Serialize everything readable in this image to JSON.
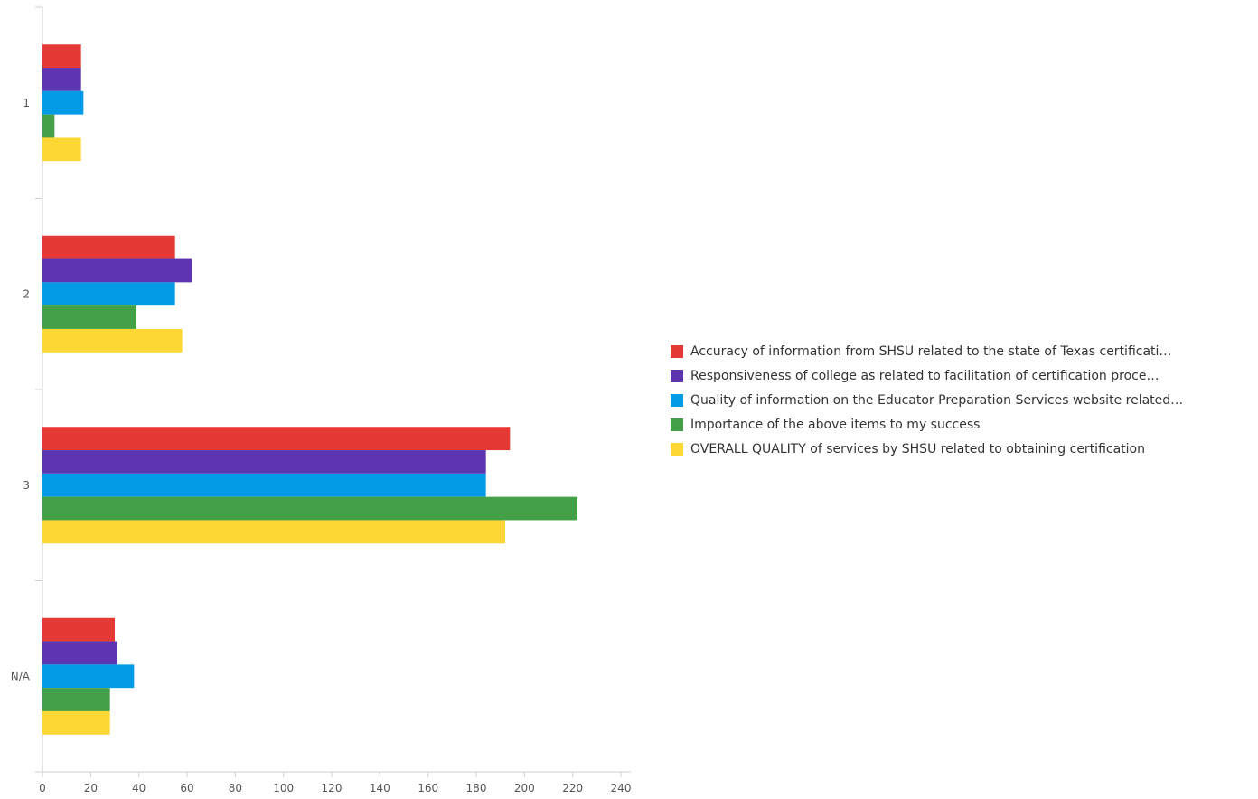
{
  "chart_data": {
    "type": "bar",
    "orientation": "horizontal",
    "categories": [
      "1",
      "2",
      "3",
      "N/A"
    ],
    "series": [
      {
        "name": "Accuracy of information from SHSU related to the state of Texas certificati…",
        "color": "#e53935",
        "values": [
          16,
          55,
          194,
          30
        ]
      },
      {
        "name": "Responsiveness of college as related to facilitation of certification proce…",
        "color": "#5e35b1",
        "values": [
          16,
          62,
          184,
          31
        ]
      },
      {
        "name": "Quality of information on the Educator Preparation Services website related…",
        "color": "#039be5",
        "values": [
          17,
          55,
          184,
          38
        ]
      },
      {
        "name": "Importance of the above items to my success",
        "color": "#43a047",
        "values": [
          5,
          39,
          222,
          28
        ]
      },
      {
        "name": "OVERALL QUALITY of services by SHSU related to obtaining certification",
        "color": "#fdd835",
        "values": [
          16,
          58,
          192,
          28
        ]
      }
    ],
    "xlim": [
      0,
      240
    ],
    "xticks": [
      0,
      20,
      40,
      60,
      80,
      100,
      120,
      140,
      160,
      180,
      200,
      220,
      240
    ],
    "xlabel": "",
    "ylabel": "",
    "title": "",
    "grid": false,
    "legend_position": "right"
  }
}
